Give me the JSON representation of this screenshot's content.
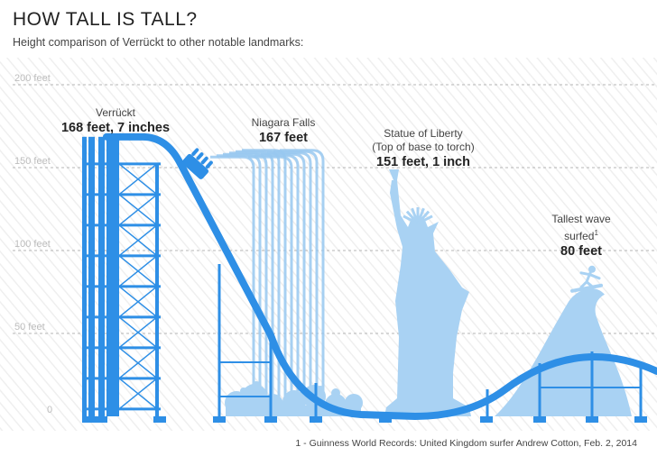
{
  "header": {
    "title": "HOW TALL IS TALL?",
    "subtitle": "Height comparison of Verrückt to other notable landmarks:"
  },
  "chart_data": {
    "type": "bar",
    "title": "HOW TALL IS TALL?",
    "subtitle": "Height comparison of Verrückt to other notable landmarks:",
    "ylim": [
      0,
      200
    ],
    "yticks": [
      {
        "value": 0,
        "label": "0"
      },
      {
        "value": 50,
        "label": "50 feet"
      },
      {
        "value": 100,
        "label": "100 feet"
      },
      {
        "value": 150,
        "label": "150 feet"
      },
      {
        "value": 200,
        "label": "200 feet"
      }
    ],
    "grid": true,
    "categories": [
      "Verrückt",
      "Niagara Falls",
      "Statue of Liberty",
      "Tallest wave surfed"
    ],
    "values": [
      168.58,
      167,
      151.08,
      80
    ],
    "items": [
      {
        "name": "Verrückt",
        "note": "",
        "value_label": "168 feet, 7 inches"
      },
      {
        "name": "Niagara Falls",
        "note": "",
        "value_label": "167 feet"
      },
      {
        "name": "Statue of Liberty",
        "note": "(Top of base to torch)",
        "value_label": "151 feet, 1 inch"
      },
      {
        "name_line1": "Tallest wave",
        "name_line2": "surfed",
        "sup": "1",
        "value_label": "80 feet"
      }
    ],
    "footnote": "1 - Guinness World Records: United Kingdom surfer Andrew Cotton, Feb. 2, 2014"
  },
  "colors": {
    "coaster": "#2e8fe6",
    "light": "#a9d2f3",
    "falls": "#98c8f0",
    "stripes": "#efefef",
    "grid": "#b5b5b5"
  },
  "icons": [
    "raft-icon",
    "surfer-icon",
    "splash-icon",
    "statue-silhouette",
    "wave-silhouette"
  ]
}
